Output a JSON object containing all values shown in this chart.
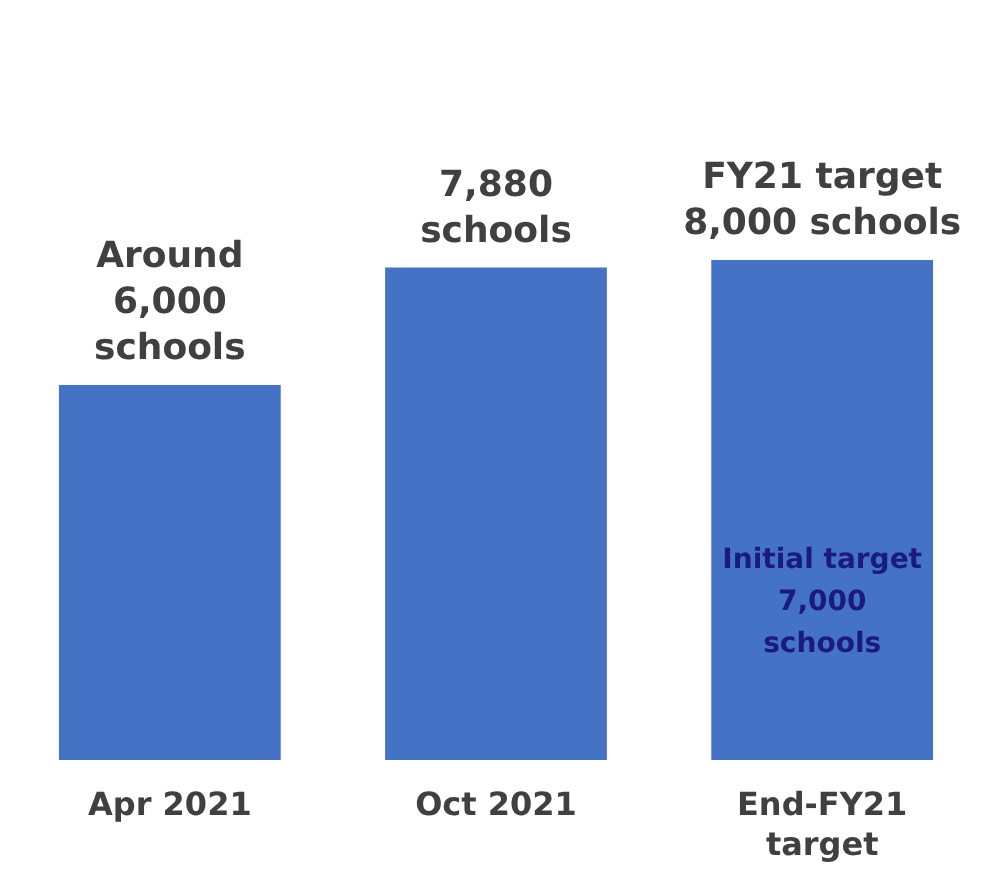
{
  "chart_data": {
    "type": "bar",
    "categories": [
      "Apr 2021",
      "Oct 2021",
      "End-FY21 target"
    ],
    "values": [
      6000,
      7880,
      8000
    ],
    "color": "#4472c4",
    "value_labels": [
      "Around\n6,000\nschools",
      "7,880\nschools",
      "FY21 target\n8,000 schools"
    ],
    "annotations": [
      "Initial target\n7,000\nschools"
    ],
    "tick_labels": "x",
    "grid": false
  }
}
